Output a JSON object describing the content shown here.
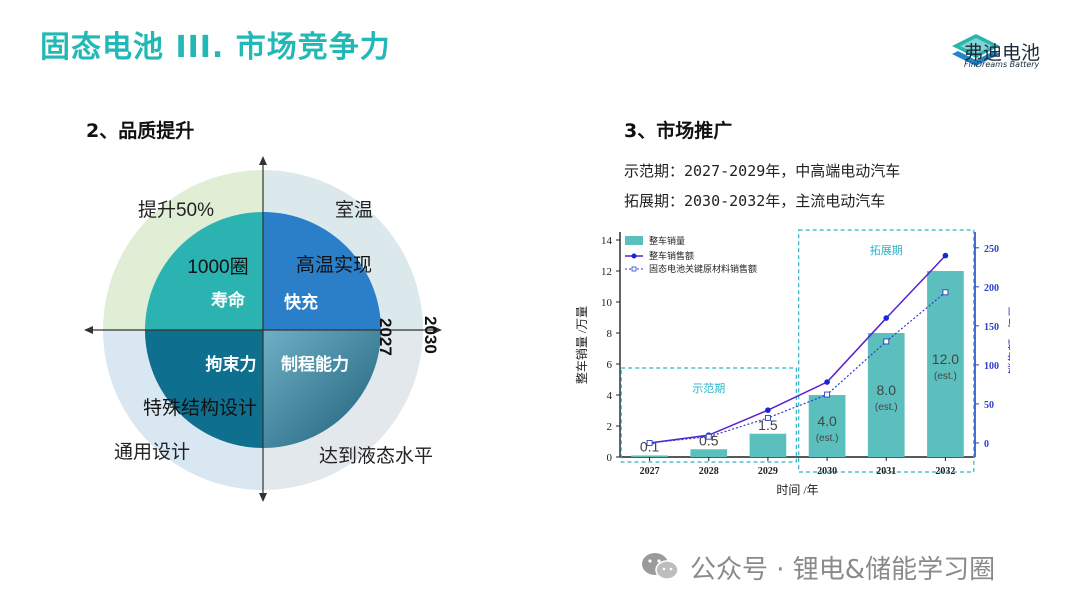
{
  "header": {
    "title": "固态电池 III. 市场竞争力"
  },
  "brand": {
    "name": "弗迪电池",
    "sub": "FinDreams Battery",
    "color": "#2bb3b0"
  },
  "left": {
    "heading": "2、品质提升",
    "axis_labels": {
      "inner": "2027",
      "outer": "2030"
    },
    "quadrants": [
      {
        "name": "寿命",
        "inner": "1000圈",
        "outer": "提升50%",
        "color": "#2ab3b1"
      },
      {
        "name": "快充",
        "inner": "高温实现",
        "outer": "室温",
        "color": "#2b7fc9"
      },
      {
        "name": "拘束力",
        "inner": "特殊结构设计",
        "outer": "通用设计",
        "color": "#0e6f8f"
      },
      {
        "name": "制程能力",
        "inner": "",
        "outer": "达到液态水平",
        "color": "#4f9ab0"
      }
    ]
  },
  "right": {
    "heading": "3、市场推广",
    "phases": [
      "示范期：2027-2029年，中高端电动汽车",
      "拓展期：2030-2032年，主流电动汽车"
    ]
  },
  "chart_data": {
    "type": "bar",
    "categories": [
      "2027",
      "2028",
      "2029",
      "2030",
      "2031",
      "2032"
    ],
    "series": [
      {
        "name": "整车销量",
        "type": "bar",
        "axis": "left",
        "values": [
          0.1,
          0.5,
          1.5,
          4.0,
          8.0,
          12.0
        ],
        "labels": [
          "0.1",
          "0.5",
          "1.5",
          "4.0",
          "8.0",
          "12.0"
        ],
        "est": [
          false,
          false,
          false,
          true,
          true,
          true
        ],
        "color": "#5bbfbd"
      },
      {
        "name": "整车销售额",
        "type": "line",
        "axis": "right",
        "values": [
          0,
          10,
          42,
          78,
          160,
          240
        ],
        "color": "#5a1fd1"
      },
      {
        "name": "固态电池关键原材料销售额",
        "type": "line",
        "axis": "right",
        "values": [
          0,
          8,
          32,
          62,
          130,
          193
        ],
        "color": "#2c3ecb"
      }
    ],
    "est_label": "(est.)",
    "xlabel": "时间 /年",
    "ylabel": "整车销量 /万量",
    "y2label": "销售额 / 亿元",
    "ylim": [
      0,
      14
    ],
    "yticks": [
      0,
      2,
      4,
      6,
      8,
      10,
      12,
      14
    ],
    "y2lim": [
      -18,
      260
    ],
    "y2ticks": [
      0,
      50,
      100,
      150,
      200,
      250
    ],
    "regions": [
      {
        "label": "示范期",
        "from": "2027",
        "to": "2029"
      },
      {
        "label": "拓展期",
        "from": "2030",
        "to": "2032"
      }
    ]
  },
  "watermark": {
    "text": "公众号 · 锂电&储能学习圈"
  }
}
